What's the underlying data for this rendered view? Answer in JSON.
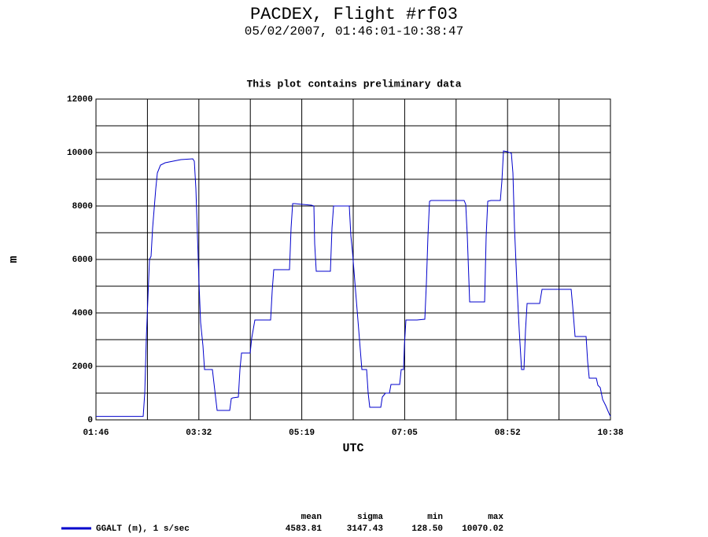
{
  "chart_data": {
    "type": "line",
    "title": "PACDEX, Flight #rf03",
    "subtitle": "05/02/2007, 01:46:01-10:38:47",
    "annotation": "This plot contains preliminary data",
    "xlabel": "UTC",
    "ylabel": "m",
    "xlim": [
      6361,
      38327
    ],
    "xticks": [
      {
        "value": 6361,
        "label": "01:46"
      },
      {
        "value": 12754,
        "label": "03:32"
      },
      {
        "value": 19148,
        "label": "05:19"
      },
      {
        "value": 25541,
        "label": "07:05"
      },
      {
        "value": 31934,
        "label": "08:52"
      },
      {
        "value": 38327,
        "label": "10:38"
      }
    ],
    "x_minor_ticks": [
      9558,
      15951,
      22344,
      28737,
      35131
    ],
    "ylim": [
      0,
      12000
    ],
    "yticks": [
      0,
      2000,
      4000,
      6000,
      8000,
      10000,
      12000
    ],
    "y_minor_ticks": [
      1000,
      3000,
      5000,
      7000,
      9000,
      11000
    ],
    "grid": true,
    "x": [
      6361,
      9294,
      9392,
      9489,
      9587,
      9685,
      9783,
      9880,
      9978,
      10076,
      10174,
      10369,
      10662,
      11151,
      11640,
      12373,
      12471,
      12569,
      12667,
      12764,
      12862,
      13009,
      13106,
      13595,
      13791,
      13889,
      14671,
      14768,
      14866,
      15208,
      15306,
      15404,
      15941,
      16039,
      16235,
      17212,
      17310,
      17408,
      18385,
      18483,
      18581,
      18728,
      19216,
      19754,
      19901,
      19950,
      20047,
      20927,
      21025,
      21123,
      21905,
      22100,
      22198,
      22296,
      22394,
      22491,
      22687,
      22882,
      23176,
      23273,
      23371,
      24056,
      24153,
      24349,
      24593,
      24691,
      25229,
      25326,
      25473,
      25522,
      25620,
      26304,
      26793,
      26891,
      26988,
      27086,
      27184,
      27770,
      29237,
      29335,
      29432,
      29579,
      30508,
      30605,
      30703,
      30899,
      31485,
      31583,
      31681,
      31925,
      32170,
      32267,
      32365,
      32512,
      32658,
      32805,
      32952,
      33049,
      33147,
      33929,
      34076,
      35102,
      35885,
      35982,
      36129,
      36813,
      36911,
      37009,
      37449,
      37546,
      37693,
      37840,
      38035,
      38231,
      38327
    ],
    "series": [
      {
        "name": "GGALT (m), 1 s/sec",
        "color": "#0000cc",
        "values": [
          130,
          130,
          1000,
          3059,
          4529,
          6000,
          6117,
          7176,
          7911,
          8647,
          9235,
          9529,
          9617,
          9676,
          9735,
          9764,
          9676,
          8647,
          6882,
          5117,
          3647,
          2765,
          1882,
          1882,
          853,
          353,
          353,
          794,
          824,
          853,
          1882,
          2500,
          2500,
          3059,
          3735,
          3735,
          4823,
          5617,
          5617,
          7176,
          8088,
          8088,
          8059,
          8029,
          8000,
          6588,
          5558,
          5558,
          7176,
          8000,
          8000,
          8000,
          6882,
          6294,
          5558,
          4823,
          3353,
          1882,
          1882,
          1000,
          471,
          471,
          853,
          1000,
          1000,
          1323,
          1323,
          1882,
          1882,
          2765,
          3735,
          3735,
          3765,
          5117,
          6882,
          8176,
          8206,
          8206,
          8206,
          8059,
          6882,
          4412,
          4412,
          6882,
          8176,
          8206,
          8206,
          8941,
          10059,
          10029,
          9970,
          9235,
          7176,
          5117,
          3353,
          1882,
          1882,
          3353,
          4353,
          4353,
          4882,
          4882,
          4882,
          4235,
          3118,
          3118,
          2176,
          1559,
          1559,
          1294,
          1206,
          765,
          529,
          250,
          130
        ]
      }
    ],
    "stats": {
      "headers": [
        "mean",
        "sigma",
        "min",
        "max"
      ],
      "values": [
        "4583.81",
        "3147.43",
        "128.50",
        "10070.02"
      ]
    }
  }
}
